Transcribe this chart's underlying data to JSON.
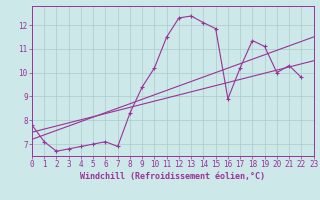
{
  "background_color": "#cce8e8",
  "line_color": "#993399",
  "grid_color": "#aacccc",
  "line1_x": [
    0,
    1,
    2,
    3,
    4,
    5,
    6,
    7,
    8,
    9,
    10,
    11,
    12,
    13,
    14,
    15,
    16,
    17,
    18,
    19,
    20,
    21,
    22
  ],
  "line1_y": [
    7.8,
    7.1,
    6.7,
    6.8,
    6.9,
    7.0,
    7.1,
    6.9,
    8.3,
    9.4,
    10.2,
    11.5,
    12.3,
    12.38,
    12.1,
    11.85,
    8.9,
    10.2,
    11.35,
    11.1,
    10.0,
    10.3,
    9.8
  ],
  "line2_x": [
    0,
    23
  ],
  "line2_y": [
    7.5,
    10.5
  ],
  "line3_x": [
    0,
    23
  ],
  "line3_y": [
    7.2,
    11.5
  ],
  "xlim": [
    0,
    23
  ],
  "ylim": [
    6.5,
    12.8
  ],
  "xticks": [
    0,
    1,
    2,
    3,
    4,
    5,
    6,
    7,
    8,
    9,
    10,
    11,
    12,
    13,
    14,
    15,
    16,
    17,
    18,
    19,
    20,
    21,
    22,
    23
  ],
  "yticks": [
    7,
    8,
    9,
    10,
    11,
    12
  ],
  "xlabel": "Windchill (Refroidissement éolien,°C)",
  "fontsize_label": 6.0,
  "fontsize_tick": 5.5
}
